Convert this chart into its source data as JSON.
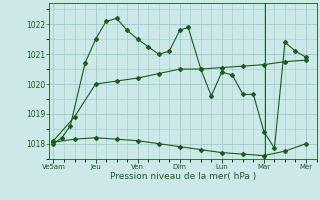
{
  "xlabel": "Pression niveau de la mer( hPa )",
  "bg_color": "#cce8e8",
  "grid_color": "#99cccc",
  "line_color": "#1a5c1a",
  "xtick_labels": [
    "Ve5am",
    "Jeu",
    "Ven",
    "Dim",
    "Lun",
    "Mar",
    "Mer"
  ],
  "xtick_positions": [
    0,
    2,
    4,
    6,
    8,
    10,
    12
  ],
  "ylim": [
    1017.5,
    1022.7
  ],
  "yticks": [
    1018,
    1019,
    1020,
    1021,
    1022
  ],
  "line1_x": [
    0,
    0.4,
    0.8,
    1.5,
    2.0,
    2.5,
    3.0,
    3.5,
    4.0,
    4.5,
    5.0,
    5.5,
    6.0,
    6.4,
    7.0,
    7.5,
    8.0,
    8.5,
    9.0,
    9.5,
    10.0,
    10.5,
    11.0,
    11.5,
    12.0
  ],
  "line1_y": [
    1018.0,
    1018.2,
    1018.6,
    1020.7,
    1021.5,
    1022.1,
    1022.2,
    1021.8,
    1021.5,
    1021.25,
    1021.0,
    1021.1,
    1021.8,
    1021.9,
    1020.5,
    1019.6,
    1020.4,
    1020.3,
    1019.65,
    1019.65,
    1018.4,
    1017.85,
    1021.4,
    1021.1,
    1020.9
  ],
  "line2_x": [
    0,
    1,
    2,
    3,
    4,
    5,
    6,
    7,
    8,
    9,
    10,
    11,
    12
  ],
  "line2_y": [
    1018.1,
    1018.9,
    1020.0,
    1020.1,
    1020.2,
    1020.35,
    1020.5,
    1020.5,
    1020.55,
    1020.6,
    1020.65,
    1020.75,
    1020.8
  ],
  "line3_x": [
    0,
    1,
    2,
    3,
    4,
    5,
    6,
    7,
    8,
    9,
    10,
    11,
    12
  ],
  "line3_y": [
    1018.05,
    1018.15,
    1018.2,
    1018.15,
    1018.1,
    1018.0,
    1017.9,
    1017.8,
    1017.7,
    1017.65,
    1017.6,
    1017.75,
    1018.0
  ],
  "vline_x": 10.05
}
